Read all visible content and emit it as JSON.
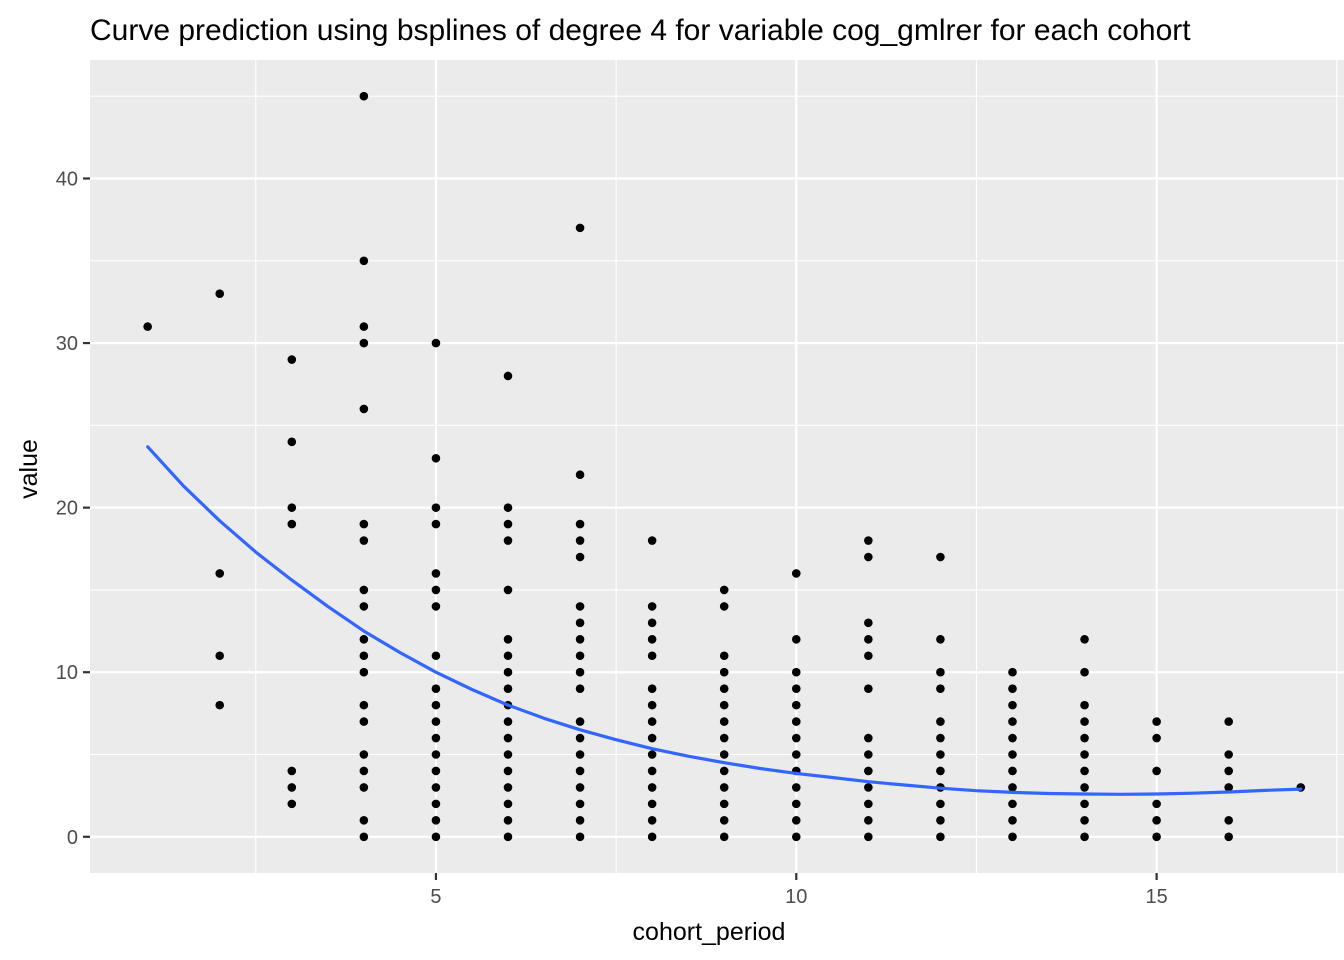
{
  "chart_data": {
    "type": "scatter",
    "title": "Curve prediction using bsplines of degree 4  for variable cog_gmlrer for each cohort",
    "xlabel": "cohort_period",
    "ylabel": "value",
    "xlim": [
      0.2,
      17.6
    ],
    "ylim": [
      -2.2,
      47.2
    ],
    "x_ticks": [
      5,
      10,
      15
    ],
    "x_minor_ticks": [
      2.5,
      7.5,
      12.5,
      17.5
    ],
    "y_ticks": [
      0,
      10,
      20,
      30,
      40
    ],
    "y_minor_ticks": [
      5,
      15,
      25,
      35,
      45
    ],
    "background": "#ebebeb",
    "grid": true,
    "grid_color": "#ffffff",
    "point_color": "#000000",
    "line_color": "#3366ff",
    "points": [
      [
        1,
        31
      ],
      [
        2,
        33
      ],
      [
        2,
        16
      ],
      [
        2,
        11
      ],
      [
        2,
        8
      ],
      [
        3,
        29
      ],
      [
        3,
        24
      ],
      [
        3,
        20
      ],
      [
        3,
        19
      ],
      [
        3,
        4
      ],
      [
        3,
        3
      ],
      [
        3,
        2
      ],
      [
        4,
        45
      ],
      [
        4,
        35
      ],
      [
        4,
        31
      ],
      [
        4,
        30
      ],
      [
        4,
        26
      ],
      [
        4,
        19
      ],
      [
        4,
        18
      ],
      [
        4,
        15
      ],
      [
        4,
        14
      ],
      [
        4,
        12
      ],
      [
        4,
        11
      ],
      [
        4,
        10
      ],
      [
        4,
        8
      ],
      [
        4,
        7
      ],
      [
        4,
        5
      ],
      [
        4,
        4
      ],
      [
        4,
        3
      ],
      [
        4,
        1
      ],
      [
        4,
        0
      ],
      [
        5,
        30
      ],
      [
        5,
        23
      ],
      [
        5,
        20
      ],
      [
        5,
        19
      ],
      [
        5,
        16
      ],
      [
        5,
        15
      ],
      [
        5,
        14
      ],
      [
        5,
        11
      ],
      [
        5,
        9
      ],
      [
        5,
        8
      ],
      [
        5,
        7
      ],
      [
        5,
        6
      ],
      [
        5,
        5
      ],
      [
        5,
        4
      ],
      [
        5,
        3
      ],
      [
        5,
        2
      ],
      [
        5,
        1
      ],
      [
        5,
        0
      ],
      [
        6,
        28
      ],
      [
        6,
        20
      ],
      [
        6,
        19
      ],
      [
        6,
        18
      ],
      [
        6,
        15
      ],
      [
        6,
        12
      ],
      [
        6,
        11
      ],
      [
        6,
        10
      ],
      [
        6,
        9
      ],
      [
        6,
        8
      ],
      [
        6,
        7
      ],
      [
        6,
        6
      ],
      [
        6,
        5
      ],
      [
        6,
        4
      ],
      [
        6,
        3
      ],
      [
        6,
        2
      ],
      [
        6,
        1
      ],
      [
        6,
        0
      ],
      [
        7,
        37
      ],
      [
        7,
        22
      ],
      [
        7,
        19
      ],
      [
        7,
        18
      ],
      [
        7,
        17
      ],
      [
        7,
        14
      ],
      [
        7,
        13
      ],
      [
        7,
        12
      ],
      [
        7,
        11
      ],
      [
        7,
        10
      ],
      [
        7,
        9
      ],
      [
        7,
        7
      ],
      [
        7,
        6
      ],
      [
        7,
        5
      ],
      [
        7,
        4
      ],
      [
        7,
        3
      ],
      [
        7,
        2
      ],
      [
        7,
        1
      ],
      [
        7,
        0
      ],
      [
        8,
        18
      ],
      [
        8,
        14
      ],
      [
        8,
        13
      ],
      [
        8,
        12
      ],
      [
        8,
        11
      ],
      [
        8,
        9
      ],
      [
        8,
        8
      ],
      [
        8,
        7
      ],
      [
        8,
        6
      ],
      [
        8,
        5
      ],
      [
        8,
        4
      ],
      [
        8,
        3
      ],
      [
        8,
        2
      ],
      [
        8,
        1
      ],
      [
        8,
        0
      ],
      [
        9,
        15
      ],
      [
        9,
        14
      ],
      [
        9,
        11
      ],
      [
        9,
        10
      ],
      [
        9,
        9
      ],
      [
        9,
        8
      ],
      [
        9,
        7
      ],
      [
        9,
        6
      ],
      [
        9,
        5
      ],
      [
        9,
        4
      ],
      [
        9,
        3
      ],
      [
        9,
        2
      ],
      [
        9,
        1
      ],
      [
        9,
        0
      ],
      [
        10,
        16
      ],
      [
        10,
        12
      ],
      [
        10,
        10
      ],
      [
        10,
        9
      ],
      [
        10,
        8
      ],
      [
        10,
        7
      ],
      [
        10,
        6
      ],
      [
        10,
        5
      ],
      [
        10,
        4
      ],
      [
        10,
        3
      ],
      [
        10,
        2
      ],
      [
        10,
        1
      ],
      [
        10,
        0
      ],
      [
        11,
        18
      ],
      [
        11,
        17
      ],
      [
        11,
        13
      ],
      [
        11,
        12
      ],
      [
        11,
        11
      ],
      [
        11,
        9
      ],
      [
        11,
        6
      ],
      [
        11,
        5
      ],
      [
        11,
        4
      ],
      [
        11,
        3
      ],
      [
        11,
        2
      ],
      [
        11,
        1
      ],
      [
        11,
        0
      ],
      [
        12,
        17
      ],
      [
        12,
        12
      ],
      [
        12,
        10
      ],
      [
        12,
        9
      ],
      [
        12,
        7
      ],
      [
        12,
        6
      ],
      [
        12,
        5
      ],
      [
        12,
        4
      ],
      [
        12,
        3
      ],
      [
        12,
        2
      ],
      [
        12,
        1
      ],
      [
        12,
        0
      ],
      [
        13,
        10
      ],
      [
        13,
        9
      ],
      [
        13,
        8
      ],
      [
        13,
        7
      ],
      [
        13,
        6
      ],
      [
        13,
        5
      ],
      [
        13,
        4
      ],
      [
        13,
        3
      ],
      [
        13,
        2
      ],
      [
        13,
        1
      ],
      [
        13,
        0
      ],
      [
        14,
        12
      ],
      [
        14,
        10
      ],
      [
        14,
        8
      ],
      [
        14,
        7
      ],
      [
        14,
        6
      ],
      [
        14,
        5
      ],
      [
        14,
        4
      ],
      [
        14,
        3
      ],
      [
        14,
        2
      ],
      [
        14,
        1
      ],
      [
        14,
        0
      ],
      [
        15,
        7
      ],
      [
        15,
        6
      ],
      [
        15,
        4
      ],
      [
        15,
        2
      ],
      [
        15,
        1
      ],
      [
        15,
        0
      ],
      [
        16,
        7
      ],
      [
        16,
        5
      ],
      [
        16,
        4
      ],
      [
        16,
        3
      ],
      [
        16,
        1
      ],
      [
        16,
        0
      ],
      [
        17,
        3
      ]
    ],
    "curve": [
      [
        1,
        23.7
      ],
      [
        1.5,
        21.3
      ],
      [
        2,
        19.2
      ],
      [
        2.5,
        17.3
      ],
      [
        3,
        15.6
      ],
      [
        3.5,
        14.0
      ],
      [
        4,
        12.5
      ],
      [
        4.5,
        11.2
      ],
      [
        5,
        10.0
      ],
      [
        5.5,
        8.95
      ],
      [
        6,
        8.0
      ],
      [
        6.5,
        7.2
      ],
      [
        7,
        6.5
      ],
      [
        7.5,
        5.9
      ],
      [
        8,
        5.35
      ],
      [
        8.5,
        4.9
      ],
      [
        9,
        4.5
      ],
      [
        9.5,
        4.15
      ],
      [
        10,
        3.85
      ],
      [
        10.5,
        3.6
      ],
      [
        11,
        3.35
      ],
      [
        11.5,
        3.15
      ],
      [
        12,
        2.95
      ],
      [
        12.5,
        2.8
      ],
      [
        13,
        2.7
      ],
      [
        13.5,
        2.63
      ],
      [
        14,
        2.6
      ],
      [
        14.5,
        2.58
      ],
      [
        15,
        2.6
      ],
      [
        15.5,
        2.65
      ],
      [
        16,
        2.72
      ],
      [
        16.5,
        2.82
      ],
      [
        17,
        2.9
      ]
    ]
  }
}
